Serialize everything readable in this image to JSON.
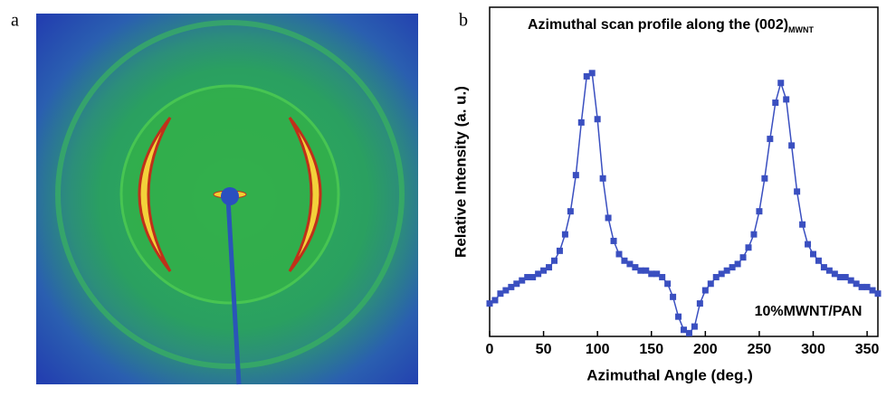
{
  "panels": [
    "a",
    "b"
  ],
  "chart_data": {
    "type": "scatter",
    "title": "Azimuthal scan profile along the (002)",
    "title_subscript": "MWNT",
    "x_label": "Azimuthal Angle (deg.)",
    "y_label": "Relative Intensity (a. u.)",
    "annotation": "10%MWNT/PAN",
    "x": [
      0,
      5,
      10,
      15,
      20,
      25,
      30,
      35,
      40,
      45,
      50,
      55,
      60,
      65,
      70,
      75,
      80,
      85,
      90,
      95,
      100,
      105,
      110,
      115,
      120,
      125,
      130,
      135,
      140,
      145,
      150,
      155,
      160,
      165,
      170,
      175,
      180,
      185,
      190,
      195,
      200,
      205,
      210,
      215,
      220,
      225,
      230,
      235,
      240,
      245,
      250,
      255,
      260,
      265,
      270,
      275,
      280,
      285,
      290,
      295,
      300,
      305,
      310,
      315,
      320,
      325,
      330,
      335,
      340,
      345,
      350,
      355,
      360
    ],
    "series": [
      {
        "color": "#3a4fc0",
        "values": [
          0.1,
          0.11,
          0.13,
          0.14,
          0.15,
          0.16,
          0.17,
          0.18,
          0.18,
          0.19,
          0.2,
          0.21,
          0.23,
          0.26,
          0.31,
          0.38,
          0.49,
          0.65,
          0.79,
          0.8,
          0.66,
          0.48,
          0.36,
          0.29,
          0.25,
          0.23,
          0.22,
          0.21,
          0.2,
          0.2,
          0.19,
          0.19,
          0.18,
          0.16,
          0.12,
          0.06,
          0.02,
          0.01,
          0.03,
          0.1,
          0.14,
          0.16,
          0.18,
          0.19,
          0.2,
          0.21,
          0.22,
          0.24,
          0.27,
          0.31,
          0.38,
          0.48,
          0.6,
          0.71,
          0.77,
          0.72,
          0.58,
          0.44,
          0.34,
          0.28,
          0.25,
          0.23,
          0.21,
          0.2,
          0.19,
          0.18,
          0.18,
          0.17,
          0.16,
          0.15,
          0.15,
          0.14,
          0.13
        ]
      }
    ],
    "xlim": [
      0,
      360
    ],
    "xticks": [
      0,
      50,
      100,
      150,
      200,
      250,
      300,
      350
    ],
    "ylim": [
      0,
      1
    ]
  }
}
